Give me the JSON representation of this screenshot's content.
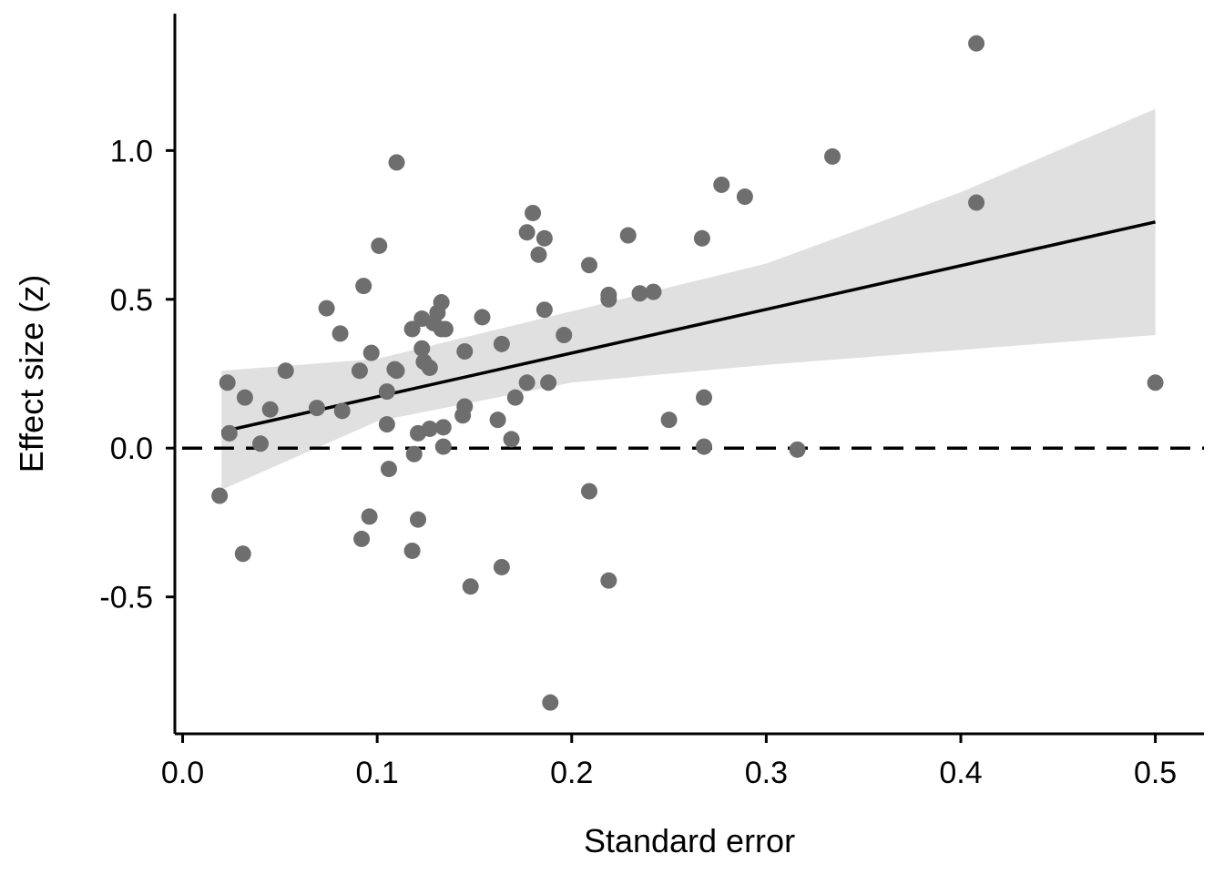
{
  "chart_data": {
    "type": "scatter",
    "title": "",
    "xlabel": "Standard error",
    "ylabel": "Effect size (z)",
    "xlim": [
      -0.004,
      0.525
    ],
    "ylim": [
      -0.96,
      1.46
    ],
    "x_ticks": [
      0.0,
      0.1,
      0.2,
      0.3,
      0.4,
      0.5
    ],
    "x_tick_labels": [
      "0.0",
      "0.1",
      "0.2",
      "0.3",
      "0.4",
      "0.5"
    ],
    "y_ticks": [
      -0.5,
      0.0,
      0.5,
      1.0
    ],
    "y_tick_labels": [
      "-0.5",
      "0.0",
      "0.5",
      "1.0"
    ],
    "grid": false,
    "legend": "none",
    "colors": {
      "points": "#6e6e6e",
      "fit_line": "#000000",
      "confidence_band": "#e0e0e0",
      "reference_line": "#000000",
      "axes": "#000000"
    },
    "reference_line": {
      "y": 0.0,
      "style": "dashed"
    },
    "fit_line": {
      "x": [
        0.02,
        0.5
      ],
      "y": [
        0.055,
        0.76
      ]
    },
    "confidence_band": {
      "x": [
        0.02,
        0.1,
        0.2,
        0.3,
        0.4,
        0.5
      ],
      "lower": [
        -0.14,
        0.09,
        0.22,
        0.28,
        0.33,
        0.38
      ],
      "upper": [
        0.26,
        0.3,
        0.46,
        0.62,
        0.86,
        1.14
      ]
    },
    "series": [
      {
        "x": [
          0.019,
          0.023,
          0.024,
          0.031,
          0.032,
          0.04,
          0.045,
          0.053,
          0.069,
          0.074,
          0.081,
          0.082,
          0.091,
          0.092,
          0.093,
          0.096,
          0.097,
          0.101,
          0.105,
          0.105,
          0.106,
          0.109,
          0.11,
          0.11,
          0.118,
          0.118,
          0.119,
          0.121,
          0.121,
          0.123,
          0.123,
          0.124,
          0.127,
          0.127,
          0.129,
          0.131,
          0.133,
          0.133,
          0.134,
          0.134,
          0.135,
          0.144,
          0.145,
          0.145,
          0.148,
          0.154,
          0.162,
          0.164,
          0.164,
          0.169,
          0.171,
          0.177,
          0.177,
          0.18,
          0.183,
          0.186,
          0.186,
          0.188,
          0.189,
          0.196,
          0.209,
          0.209,
          0.219,
          0.219,
          0.219,
          0.229,
          0.235,
          0.242,
          0.25,
          0.267,
          0.268,
          0.268,
          0.277,
          0.289,
          0.316,
          0.334,
          0.408,
          0.408,
          0.5
        ],
        "y": [
          -0.16,
          0.22,
          0.05,
          -0.355,
          0.17,
          0.015,
          0.13,
          0.26,
          0.135,
          0.47,
          0.385,
          0.125,
          0.26,
          -0.305,
          0.545,
          -0.23,
          0.32,
          0.68,
          0.19,
          0.08,
          -0.07,
          0.265,
          0.96,
          0.26,
          0.4,
          -0.345,
          -0.02,
          0.05,
          -0.24,
          0.335,
          0.435,
          0.29,
          0.27,
          0.065,
          0.42,
          0.455,
          0.4,
          0.49,
          0.07,
          0.005,
          0.4,
          0.11,
          0.325,
          0.14,
          -0.465,
          0.44,
          0.095,
          0.35,
          -0.4,
          0.03,
          0.17,
          0.725,
          0.22,
          0.79,
          0.65,
          0.705,
          0.465,
          0.22,
          -0.855,
          0.38,
          -0.145,
          0.615,
          0.5,
          0.515,
          -0.445,
          0.715,
          0.52,
          0.525,
          0.095,
          0.705,
          0.17,
          0.005,
          0.885,
          0.845,
          -0.005,
          0.98,
          1.36,
          0.825,
          0.22
        ]
      }
    ]
  }
}
